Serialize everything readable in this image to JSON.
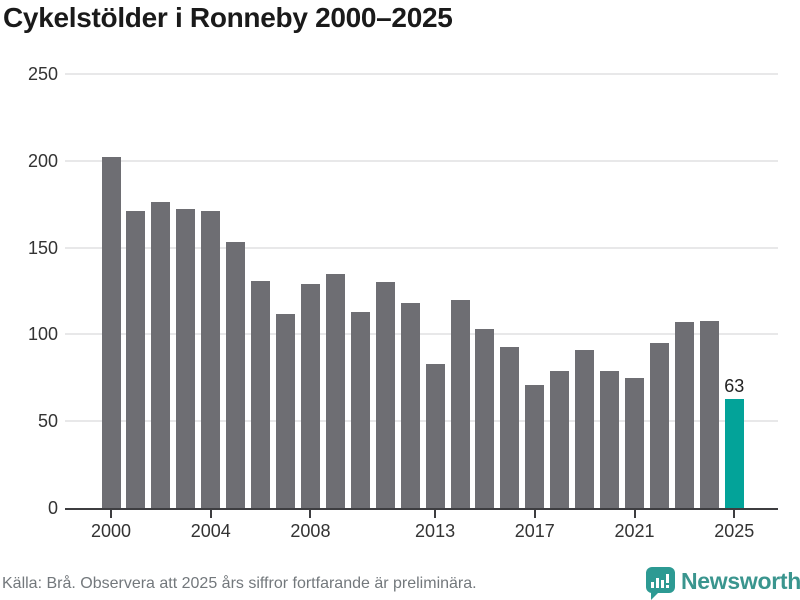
{
  "title": "Cykelstölder i Ronneby 2000–2025",
  "chart_data": {
    "type": "bar",
    "categories": [
      2000,
      2001,
      2002,
      2003,
      2004,
      2005,
      2006,
      2007,
      2008,
      2009,
      2010,
      2011,
      2012,
      2013,
      2014,
      2015,
      2016,
      2017,
      2018,
      2019,
      2020,
      2021,
      2022,
      2023,
      2024,
      2025
    ],
    "values": [
      202,
      171,
      176,
      172,
      171,
      153,
      131,
      112,
      129,
      135,
      113,
      130,
      118,
      83,
      120,
      103,
      93,
      71,
      79,
      91,
      79,
      75,
      95,
      107,
      108,
      63
    ],
    "title": "Cykelstölder i Ronneby 2000–2025",
    "xlabel": "",
    "ylabel": "",
    "ylim": [
      0,
      250
    ],
    "yticks": [
      0,
      50,
      100,
      150,
      200,
      250
    ],
    "xtick_labels": [
      "2000",
      "2004",
      "2008",
      "2013",
      "2017",
      "2021",
      "2025"
    ],
    "grid": true,
    "legend": "none",
    "bar_color": "#6e6e73",
    "highlight_color": "#03a399",
    "highlight_year": 2025,
    "annotation": {
      "text": "63",
      "year": 2025
    }
  },
  "footer": {
    "source": "Källa: Brå. Observera att 2025 års siffror fortfarande är preliminära."
  },
  "branding": {
    "name": "Newsworthy",
    "logo_icon": "newsworthy-speech-bubble-chart-icon",
    "color": "#3a958e"
  }
}
